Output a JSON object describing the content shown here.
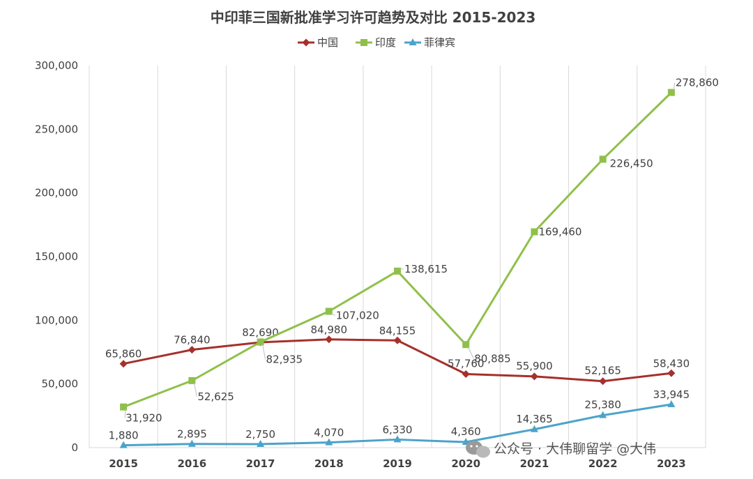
{
  "chart_data": {
    "type": "line",
    "title": "中印菲三国新批准学习许可趋势及对比 2015-2023",
    "x": [
      "2015",
      "2016",
      "2017",
      "2018",
      "2019",
      "2020",
      "2021",
      "2022",
      "2023"
    ],
    "ylim": [
      0,
      300000
    ],
    "yticks": [
      "0",
      "50,000",
      "100,000",
      "150,000",
      "200,000",
      "250,000",
      "300,000"
    ],
    "grid": "vertical",
    "legend_position": "top",
    "series": [
      {
        "name": "中国",
        "color": "#A5302C",
        "marker": "diamond",
        "values": [
          65860,
          76840,
          82690,
          84980,
          84155,
          57760,
          55900,
          52165,
          58430
        ],
        "labels": [
          "65,860",
          "76,840",
          "82,690",
          "84,980",
          "84,155",
          "57,760",
          "55,900",
          "52,165",
          "58,430"
        ]
      },
      {
        "name": "印度",
        "color": "#8FC04A",
        "marker": "square",
        "values": [
          31920,
          52625,
          82935,
          107020,
          138615,
          80885,
          169460,
          226450,
          278860
        ],
        "labels": [
          "31,920",
          "52,625",
          "82,935",
          "107,020",
          "138,615",
          "80,885",
          "169,460",
          "226,450",
          "278,860"
        ]
      },
      {
        "name": "菲律宾",
        "color": "#4BA3C9",
        "marker": "triangle",
        "values": [
          1880,
          2895,
          2750,
          4070,
          6330,
          4360,
          14365,
          25380,
          33945
        ],
        "labels": [
          "1,880",
          "2,895",
          "2,750",
          "4,070",
          "6,330",
          "4,360",
          "14,365",
          "25,380",
          "33,945"
        ]
      }
    ]
  },
  "watermark": {
    "icon": "wechat-icon",
    "text": "公众号 · 大伟聊留学 @大伟"
  }
}
